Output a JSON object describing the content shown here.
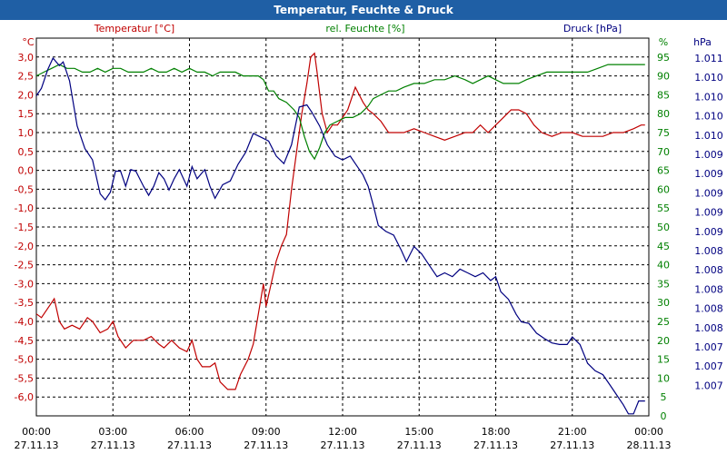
{
  "chart_data": {
    "type": "line",
    "title": "Temperatur, Feuchte & Druck",
    "grid": true,
    "x_ticks": [
      {
        "time": "00:00",
        "date": "27.11.13"
      },
      {
        "time": "03:00",
        "date": "27.11.13"
      },
      {
        "time": "06:00",
        "date": "27.11.13"
      },
      {
        "time": "09:00",
        "date": "27.11.13"
      },
      {
        "time": "12:00",
        "date": "27.11.13"
      },
      {
        "time": "15:00",
        "date": "27.11.13"
      },
      {
        "time": "18:00",
        "date": "27.11.13"
      },
      {
        "time": "21:00",
        "date": "27.11.13"
      },
      {
        "time": "00:00",
        "date": "28.11.13"
      }
    ],
    "axes": {
      "temperature": {
        "label": "Temperatur [°C]",
        "unit": "°C",
        "color": "#c00000",
        "min": -6.5,
        "max": 3.5,
        "ticks": [
          "3,0",
          "2,5",
          "2,0",
          "1,5",
          "1,0",
          "0,5",
          "0,0",
          "-0,5",
          "-1,0",
          "-1,5",
          "-2,0",
          "-2,5",
          "-3,0",
          "-3,5",
          "-4,0",
          "-4,5",
          "-5,0",
          "-5,5",
          "-6,0"
        ]
      },
      "humidity": {
        "label": "rel. Feuchte [%]",
        "unit": "%",
        "color": "#008000",
        "min": 0,
        "max": 100,
        "ticks": [
          "95",
          "90",
          "85",
          "80",
          "75",
          "70",
          "65",
          "60",
          "55",
          "50",
          "45",
          "40",
          "35",
          "30",
          "25",
          "20",
          "15",
          "10",
          "5",
          "0"
        ]
      },
      "pressure": {
        "label": "Druck [hPa]",
        "unit": "hPa",
        "color": "#000080",
        "ticks": [
          "1.011",
          "1.010",
          "1.010",
          "1.010",
          "1.010",
          "1.009",
          "1.009",
          "1.009",
          "1.009",
          "1.009",
          "1.008",
          "1.008",
          "1.008",
          "1.008",
          "1.008",
          "1.007",
          "1.007",
          "1.007"
        ]
      }
    },
    "series": [
      {
        "name": "Temperatur [°C]",
        "axis": "temperature",
        "color": "#c00000",
        "points": [
          [
            0,
            -3.8
          ],
          [
            0.2,
            -3.9
          ],
          [
            0.5,
            -3.6
          ],
          [
            0.7,
            -3.4
          ],
          [
            0.9,
            -4.0
          ],
          [
            1.1,
            -4.2
          ],
          [
            1.4,
            -4.1
          ],
          [
            1.7,
            -4.2
          ],
          [
            2.0,
            -3.9
          ],
          [
            2.2,
            -4.0
          ],
          [
            2.5,
            -4.3
          ],
          [
            2.8,
            -4.2
          ],
          [
            3.0,
            -4.0
          ],
          [
            3.2,
            -4.4
          ],
          [
            3.5,
            -4.7
          ],
          [
            3.8,
            -4.5
          ],
          [
            4.2,
            -4.5
          ],
          [
            4.5,
            -4.4
          ],
          [
            4.8,
            -4.6
          ],
          [
            5.0,
            -4.7
          ],
          [
            5.3,
            -4.5
          ],
          [
            5.6,
            -4.7
          ],
          [
            5.9,
            -4.8
          ],
          [
            6.1,
            -4.5
          ],
          [
            6.3,
            -5.0
          ],
          [
            6.5,
            -5.2
          ],
          [
            6.8,
            -5.2
          ],
          [
            7.0,
            -5.1
          ],
          [
            7.2,
            -5.6
          ],
          [
            7.5,
            -5.8
          ],
          [
            7.8,
            -5.8
          ],
          [
            8.0,
            -5.4
          ],
          [
            8.3,
            -5.0
          ],
          [
            8.5,
            -4.6
          ],
          [
            8.7,
            -3.8
          ],
          [
            8.9,
            -3.0
          ],
          [
            9.0,
            -3.6
          ],
          [
            9.2,
            -3.0
          ],
          [
            9.4,
            -2.4
          ],
          [
            9.6,
            -2.0
          ],
          [
            9.8,
            -1.7
          ],
          [
            10.0,
            -0.5
          ],
          [
            10.2,
            0.5
          ],
          [
            10.4,
            1.5
          ],
          [
            10.6,
            2.3
          ],
          [
            10.75,
            3.0
          ],
          [
            10.9,
            3.1
          ],
          [
            11.0,
            2.6
          ],
          [
            11.2,
            1.5
          ],
          [
            11.4,
            1.0
          ],
          [
            11.6,
            1.2
          ],
          [
            11.8,
            1.2
          ],
          [
            12.0,
            1.4
          ],
          [
            12.2,
            1.6
          ],
          [
            12.5,
            2.2
          ],
          [
            12.8,
            1.8
          ],
          [
            13.0,
            1.6
          ],
          [
            13.2,
            1.5
          ],
          [
            13.5,
            1.3
          ],
          [
            13.8,
            1.0
          ],
          [
            14.0,
            1.0
          ],
          [
            14.4,
            1.0
          ],
          [
            14.8,
            1.1
          ],
          [
            15.2,
            1.0
          ],
          [
            15.6,
            0.9
          ],
          [
            16.0,
            0.8
          ],
          [
            16.4,
            0.9
          ],
          [
            16.8,
            1.0
          ],
          [
            17.1,
            1.0
          ],
          [
            17.4,
            1.2
          ],
          [
            17.7,
            1.0
          ],
          [
            18.0,
            1.2
          ],
          [
            18.3,
            1.4
          ],
          [
            18.6,
            1.6
          ],
          [
            18.9,
            1.6
          ],
          [
            19.2,
            1.5
          ],
          [
            19.5,
            1.2
          ],
          [
            19.8,
            1.0
          ],
          [
            20.2,
            0.9
          ],
          [
            20.6,
            1.0
          ],
          [
            21.0,
            1.0
          ],
          [
            21.4,
            0.9
          ],
          [
            21.8,
            0.9
          ],
          [
            22.2,
            0.9
          ],
          [
            22.6,
            1.0
          ],
          [
            23.0,
            1.0
          ],
          [
            23.4,
            1.1
          ],
          [
            23.7,
            1.2
          ],
          [
            23.85,
            1.2
          ]
        ]
      },
      {
        "name": "rel. Feuchte [%]",
        "axis": "humidity",
        "color": "#008000",
        "points": [
          [
            0,
            90
          ],
          [
            0.3,
            91
          ],
          [
            0.6,
            92
          ],
          [
            0.9,
            93
          ],
          [
            1.2,
            92
          ],
          [
            1.5,
            92
          ],
          [
            1.8,
            91
          ],
          [
            2.1,
            91
          ],
          [
            2.4,
            92
          ],
          [
            2.7,
            91
          ],
          [
            3.0,
            92
          ],
          [
            3.3,
            92
          ],
          [
            3.6,
            91
          ],
          [
            3.9,
            91
          ],
          [
            4.2,
            91
          ],
          [
            4.5,
            92
          ],
          [
            4.8,
            91
          ],
          [
            5.1,
            91
          ],
          [
            5.4,
            92
          ],
          [
            5.7,
            91
          ],
          [
            6.0,
            92
          ],
          [
            6.3,
            91
          ],
          [
            6.6,
            91
          ],
          [
            6.9,
            90
          ],
          [
            7.2,
            91
          ],
          [
            7.5,
            91
          ],
          [
            7.8,
            91
          ],
          [
            8.1,
            90
          ],
          [
            8.4,
            90
          ],
          [
            8.7,
            90
          ],
          [
            8.9,
            89
          ],
          [
            9.1,
            86
          ],
          [
            9.3,
            86
          ],
          [
            9.5,
            84
          ],
          [
            9.8,
            83
          ],
          [
            10.1,
            81
          ],
          [
            10.3,
            79
          ],
          [
            10.5,
            74
          ],
          [
            10.7,
            70
          ],
          [
            10.9,
            68
          ],
          [
            11.1,
            71
          ],
          [
            11.3,
            75
          ],
          [
            11.5,
            77
          ],
          [
            11.8,
            78
          ],
          [
            12.1,
            79
          ],
          [
            12.4,
            79
          ],
          [
            12.7,
            80
          ],
          [
            13.0,
            82
          ],
          [
            13.2,
            84
          ],
          [
            13.5,
            85
          ],
          [
            13.8,
            86
          ],
          [
            14.1,
            86
          ],
          [
            14.4,
            87
          ],
          [
            14.8,
            88
          ],
          [
            15.2,
            88
          ],
          [
            15.6,
            89
          ],
          [
            16.0,
            89
          ],
          [
            16.4,
            90
          ],
          [
            16.8,
            89
          ],
          [
            17.1,
            88
          ],
          [
            17.4,
            89
          ],
          [
            17.7,
            90
          ],
          [
            18.0,
            89
          ],
          [
            18.3,
            88
          ],
          [
            18.6,
            88
          ],
          [
            18.9,
            88
          ],
          [
            19.2,
            89
          ],
          [
            19.6,
            90
          ],
          [
            20.0,
            91
          ],
          [
            20.4,
            91
          ],
          [
            20.8,
            91
          ],
          [
            21.2,
            91
          ],
          [
            21.6,
            91
          ],
          [
            22.0,
            92
          ],
          [
            22.4,
            93
          ],
          [
            22.8,
            93
          ],
          [
            23.2,
            93
          ],
          [
            23.6,
            93
          ],
          [
            23.85,
            93
          ]
        ]
      },
      {
        "name": "Druck [hPa]",
        "axis": "pressure",
        "color": "#000080",
        "points": [
          [
            0,
            410
          ],
          [
            0.2,
            420
          ],
          [
            0.45,
            445
          ],
          [
            0.65,
            460
          ],
          [
            0.9,
            450
          ],
          [
            1.05,
            455
          ],
          [
            1.3,
            430
          ],
          [
            1.6,
            370
          ],
          [
            1.9,
            340
          ],
          [
            2.2,
            325
          ],
          [
            2.5,
            280
          ],
          [
            2.7,
            272
          ],
          [
            2.9,
            282
          ],
          [
            3.1,
            310
          ],
          [
            3.3,
            310
          ],
          [
            3.5,
            290
          ],
          [
            3.7,
            312
          ],
          [
            3.9,
            310
          ],
          [
            4.2,
            290
          ],
          [
            4.4,
            278
          ],
          [
            4.6,
            290
          ],
          [
            4.8,
            308
          ],
          [
            5.0,
            300
          ],
          [
            5.2,
            285
          ],
          [
            5.4,
            300
          ],
          [
            5.6,
            312
          ],
          [
            5.9,
            290
          ],
          [
            6.1,
            316
          ],
          [
            6.3,
            300
          ],
          [
            6.6,
            312
          ],
          [
            6.8,
            290
          ],
          [
            7.0,
            274
          ],
          [
            7.3,
            292
          ],
          [
            7.6,
            297
          ],
          [
            7.9,
            319
          ],
          [
            8.2,
            335
          ],
          [
            8.5,
            360
          ],
          [
            8.8,
            355
          ],
          [
            9.1,
            350
          ],
          [
            9.4,
            330
          ],
          [
            9.7,
            320
          ],
          [
            10.0,
            345
          ],
          [
            10.3,
            395
          ],
          [
            10.6,
            398
          ],
          [
            10.8,
            388
          ],
          [
            11.1,
            370
          ],
          [
            11.4,
            345
          ],
          [
            11.7,
            330
          ],
          [
            12.0,
            325
          ],
          [
            12.3,
            330
          ],
          [
            12.5,
            320
          ],
          [
            12.8,
            305
          ],
          [
            13.0,
            290
          ],
          [
            13.2,
            265
          ],
          [
            13.4,
            238
          ],
          [
            13.7,
            230
          ],
          [
            14.0,
            225
          ],
          [
            14.3,
            205
          ],
          [
            14.5,
            190
          ],
          [
            14.8,
            210
          ],
          [
            15.1,
            200
          ],
          [
            15.4,
            185
          ],
          [
            15.7,
            170
          ],
          [
            16.0,
            175
          ],
          [
            16.3,
            170
          ],
          [
            16.6,
            180
          ],
          [
            16.9,
            175
          ],
          [
            17.2,
            170
          ],
          [
            17.5,
            175
          ],
          [
            17.8,
            165
          ],
          [
            18.0,
            170
          ],
          [
            18.2,
            150
          ],
          [
            18.5,
            140
          ],
          [
            18.8,
            120
          ],
          [
            19.0,
            110
          ],
          [
            19.3,
            108
          ],
          [
            19.6,
            95
          ],
          [
            19.9,
            88
          ],
          [
            20.2,
            82
          ],
          [
            20.5,
            80
          ],
          [
            20.8,
            80
          ],
          [
            21.0,
            90
          ],
          [
            21.3,
            80
          ],
          [
            21.6,
            55
          ],
          [
            21.9,
            45
          ],
          [
            22.2,
            40
          ],
          [
            22.5,
            25
          ],
          [
            22.8,
            10
          ],
          [
            23.0,
            0
          ],
          [
            23.2,
            -12
          ],
          [
            23.4,
            -12
          ],
          [
            23.6,
            5
          ],
          [
            23.85,
            5
          ]
        ]
      }
    ]
  }
}
